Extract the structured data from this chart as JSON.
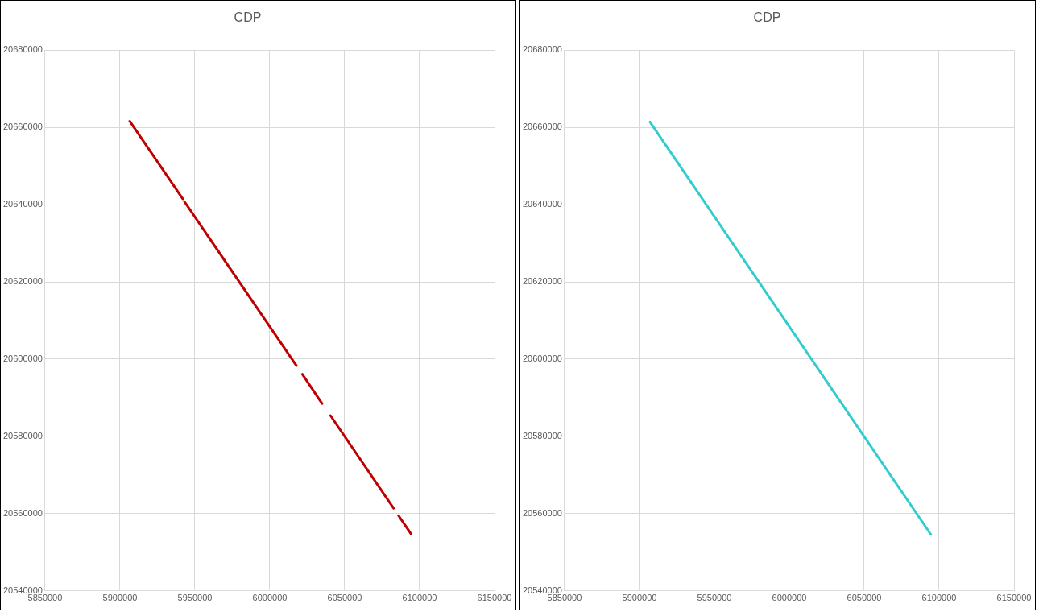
{
  "chart_data": [
    {
      "type": "line",
      "title": "CDP",
      "x": [
        5906500,
        5941900,
        5942450,
        5943000,
        6017800,
        6019750,
        6021700,
        6034900,
        6037700,
        6040500,
        6082600,
        6084250,
        6085900,
        6094200
      ],
      "series": [
        {
          "color": "#c00000",
          "values": [
            20661600,
            20641500,
            null,
            20640800,
            20598300,
            null,
            20596100,
            20588500,
            null,
            20585400,
            20561400,
            null,
            20559500,
            20554800
          ]
        }
      ],
      "xlim": [
        5850000,
        6150000
      ],
      "xticks": [
        5850000,
        5900000,
        5950000,
        6000000,
        6050000,
        6100000,
        6150000
      ],
      "ylim": [
        20540000,
        20680000
      ],
      "yticks": [
        20540000,
        20560000,
        20580000,
        20600000,
        20620000,
        20640000,
        20660000,
        20680000
      ],
      "grid": true,
      "marker": "none",
      "line_style": "solid",
      "legend": false
    },
    {
      "type": "line",
      "title": "CDP",
      "x": [
        5907000,
        6094500
      ],
      "series": [
        {
          "color": "#33cccc",
          "values": [
            20661400,
            20554600
          ]
        }
      ],
      "xlim": [
        5850000,
        6150000
      ],
      "xticks": [
        5850000,
        5900000,
        5950000,
        6000000,
        6050000,
        6100000,
        6150000
      ],
      "ylim": [
        20540000,
        20680000
      ],
      "yticks": [
        20540000,
        20560000,
        20580000,
        20600000,
        20620000,
        20640000,
        20660000,
        20680000
      ],
      "grid": true,
      "marker": "none",
      "line_style": "solid",
      "legend": false
    }
  ]
}
